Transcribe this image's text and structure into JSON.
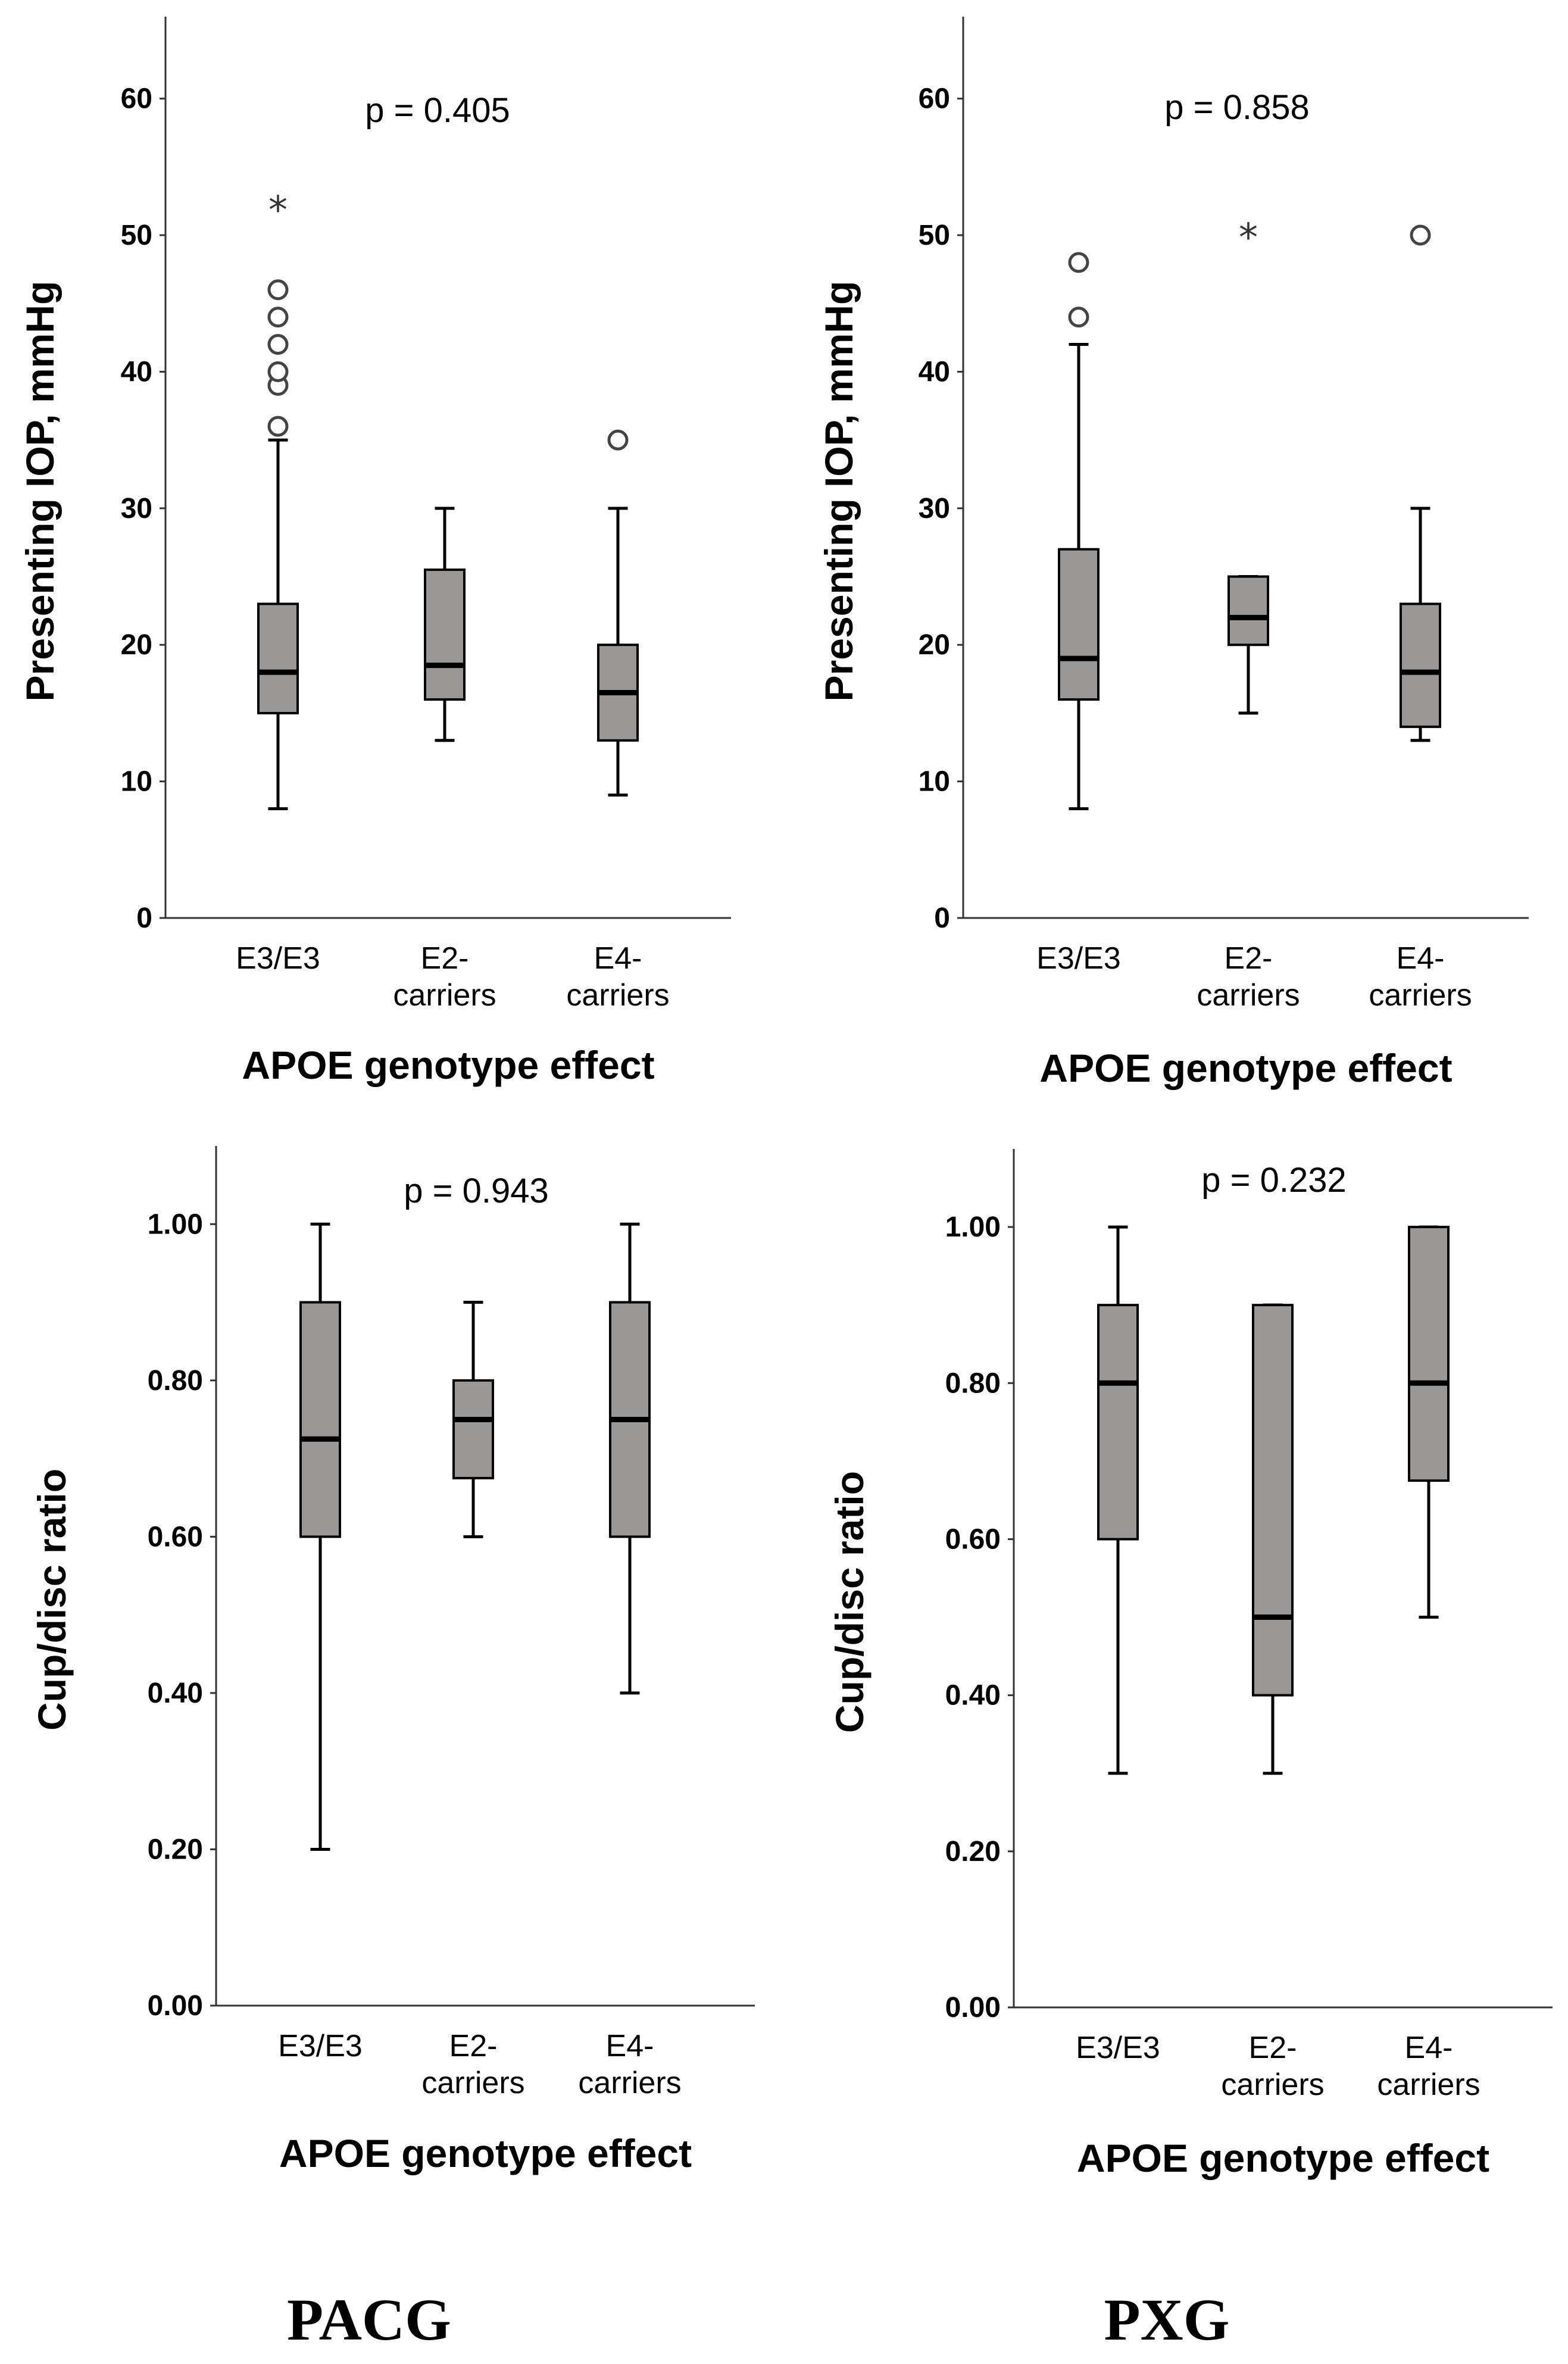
{
  "groups": {
    "left": "PACG",
    "right": "PXG"
  },
  "chart_data": [
    {
      "type": "box",
      "group": "PACG",
      "p_value": "p = 0.405",
      "xlabel": "APOE genotype effect",
      "ylabel": "Presenting IOP, mmHg",
      "ylim": [
        0,
        66
      ],
      "yticks": [
        "0",
        "10",
        "20",
        "30",
        "40",
        "50",
        "60"
      ],
      "ytick_values": [
        0,
        10,
        20,
        30,
        40,
        50,
        60
      ],
      "categories": [
        [
          "E3/E3"
        ],
        [
          "E2-",
          "carriers"
        ],
        [
          "E4-",
          "carriers"
        ]
      ],
      "boxes": [
        {
          "whisker_low": 8,
          "q1": 15,
          "median": 18,
          "q3": 23,
          "whisker_high": 35,
          "outliers": [
            36,
            39,
            40,
            42,
            44,
            46
          ],
          "extremes": [
            52
          ]
        },
        {
          "whisker_low": 13,
          "q1": 16,
          "median": 18.5,
          "q3": 25.5,
          "whisker_high": 30,
          "outliers": [],
          "extremes": []
        },
        {
          "whisker_low": 9,
          "q1": 13,
          "median": 16.5,
          "q3": 20,
          "whisker_high": 30,
          "outliers": [
            35
          ],
          "extremes": []
        }
      ]
    },
    {
      "type": "box",
      "group": "PXG",
      "p_value": "p = 0.858",
      "xlabel": "APOE genotype effect",
      "ylabel": "Presenting IOP, mmHg",
      "ylim": [
        0,
        66
      ],
      "yticks": [
        "0",
        "10",
        "20",
        "30",
        "40",
        "50",
        "60"
      ],
      "ytick_values": [
        0,
        10,
        20,
        30,
        40,
        50,
        60
      ],
      "categories": [
        [
          "E3/E3"
        ],
        [
          "E2-",
          "carriers"
        ],
        [
          "E4-",
          "carriers"
        ]
      ],
      "boxes": [
        {
          "whisker_low": 8,
          "q1": 16,
          "median": 19,
          "q3": 27,
          "whisker_high": 42,
          "outliers": [
            44,
            48
          ],
          "extremes": []
        },
        {
          "whisker_low": 15,
          "q1": 20,
          "median": 22,
          "q3": 25,
          "whisker_high": 25,
          "outliers": [],
          "extremes": [
            50
          ]
        },
        {
          "whisker_low": 13,
          "q1": 14,
          "median": 18,
          "q3": 23,
          "whisker_high": 30,
          "outliers": [
            50
          ],
          "extremes": []
        }
      ]
    },
    {
      "type": "box",
      "group": "PACG",
      "p_value": "p = 0.943",
      "xlabel": "APOE genotype effect",
      "ylabel": "Cup/disc ratio",
      "ylim": [
        0,
        1.1
      ],
      "yticks": [
        "0.00",
        "0.20",
        "0.40",
        "0.60",
        "0.80",
        "1.00"
      ],
      "ytick_values": [
        0,
        0.2,
        0.4,
        0.6,
        0.8,
        1.0
      ],
      "categories": [
        [
          "E3/E3"
        ],
        [
          "E2-",
          "carriers"
        ],
        [
          "E4-",
          "carriers"
        ]
      ],
      "boxes": [
        {
          "whisker_low": 0.2,
          "q1": 0.6,
          "median": 0.725,
          "q3": 0.9,
          "whisker_high": 1.0,
          "outliers": [],
          "extremes": []
        },
        {
          "whisker_low": 0.6,
          "q1": 0.675,
          "median": 0.75,
          "q3": 0.8,
          "whisker_high": 0.9,
          "outliers": [],
          "extremes": []
        },
        {
          "whisker_low": 0.4,
          "q1": 0.6,
          "median": 0.75,
          "q3": 0.9,
          "whisker_high": 1.0,
          "outliers": [],
          "extremes": []
        }
      ]
    },
    {
      "type": "box",
      "group": "PXG",
      "p_value": "p = 0.232",
      "xlabel": "APOE genotype effect",
      "ylabel": "Cup/disc ratio",
      "ylim": [
        0,
        1.1
      ],
      "yticks": [
        "0.00",
        "0.20",
        "0.40",
        "0.60",
        "0.80",
        "1.00"
      ],
      "ytick_values": [
        0,
        0.2,
        0.4,
        0.6,
        0.8,
        1.0
      ],
      "categories": [
        [
          "E3/E3"
        ],
        [
          "E2-",
          "carriers"
        ],
        [
          "E4-",
          "carriers"
        ]
      ],
      "boxes": [
        {
          "whisker_low": 0.3,
          "q1": 0.6,
          "median": 0.8,
          "q3": 0.9,
          "whisker_high": 1.0,
          "outliers": [],
          "extremes": []
        },
        {
          "whisker_low": 0.3,
          "q1": 0.4,
          "median": 0.5,
          "q3": 0.9,
          "whisker_high": 0.9,
          "outliers": [],
          "extremes": []
        },
        {
          "whisker_low": 0.5,
          "q1": 0.675,
          "median": 0.8,
          "q3": 1.0,
          "whisker_high": 1.0,
          "outliers": [],
          "extremes": []
        }
      ]
    }
  ]
}
